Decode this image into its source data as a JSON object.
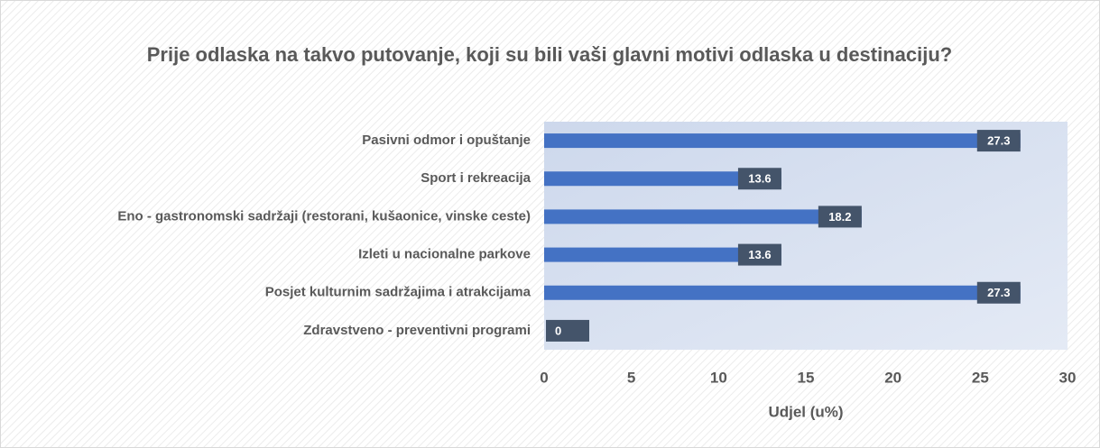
{
  "chart_data": {
    "type": "bar",
    "orientation": "horizontal",
    "title": "Prije odlaska na takvo putovanje, koji su bili vaši glavni motivi odlaska u destinaciju?",
    "categories": [
      "Pasivni odmor i opuštanje",
      "Sport i rekreacija",
      "Eno - gastronomski sadržaji (restorani, kušaonice, vinske ceste)",
      "Izleti u nacionalne parkove",
      "Posjet kulturnim sadržajima i atrakcijama",
      "Zdravstveno - preventivni programi"
    ],
    "values": [
      27.3,
      13.6,
      18.2,
      13.6,
      27.3,
      0
    ],
    "color": "#4472c4",
    "xlabel": "Udjel (u%)",
    "xlim": [
      0,
      30
    ],
    "xticks": [
      0,
      5,
      10,
      15,
      20,
      25,
      30
    ]
  }
}
